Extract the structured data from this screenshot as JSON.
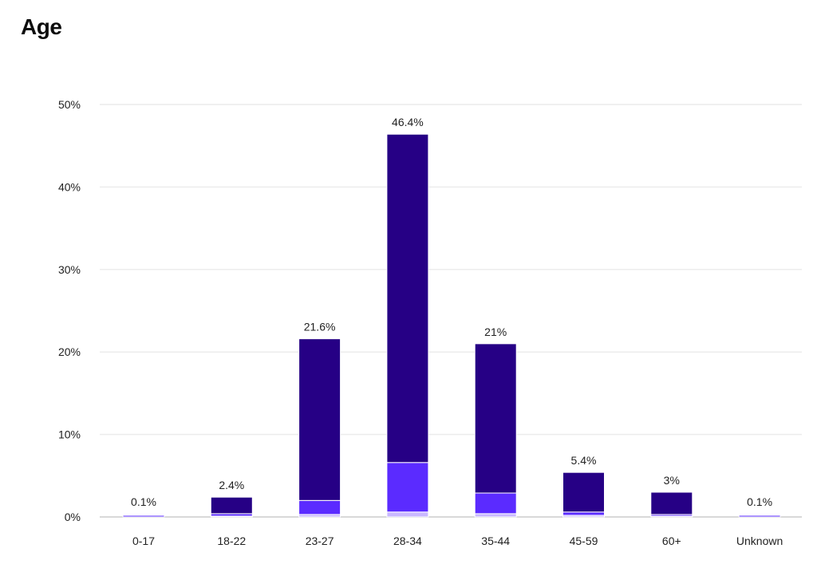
{
  "chart_data": {
    "type": "bar",
    "title": "Age",
    "categories": [
      "0-17",
      "18-22",
      "23-27",
      "28-34",
      "35-44",
      "45-59",
      "60+",
      "Unknown"
    ],
    "series": [
      {
        "values": [
          0.0,
          0.1,
          0.3,
          0.6,
          0.4,
          0.2,
          0.1,
          0.0
        ],
        "color": "#c9b8ff"
      },
      {
        "values": [
          0.1,
          0.3,
          1.7,
          6.0,
          2.5,
          0.4,
          0.2,
          0.1
        ],
        "color": "#5b2bff"
      },
      {
        "values": [
          0.0,
          2.0,
          19.6,
          39.8,
          18.1,
          4.8,
          2.7,
          0.0
        ],
        "color": "#260085"
      }
    ],
    "totals": [
      0.1,
      2.4,
      21.6,
      46.4,
      21,
      5.4,
      3,
      0.1
    ],
    "total_labels": [
      "0.1%",
      "2.4%",
      "21.6%",
      "46.4%",
      "21%",
      "5.4%",
      "3%",
      "0.1%"
    ],
    "y_ticks": [
      0,
      10,
      20,
      30,
      40,
      50
    ],
    "y_tick_labels": [
      "0%",
      "10%",
      "20%",
      "30%",
      "40%",
      "50%"
    ],
    "ylim": [
      0,
      50
    ],
    "grid": true,
    "legend": "none"
  }
}
